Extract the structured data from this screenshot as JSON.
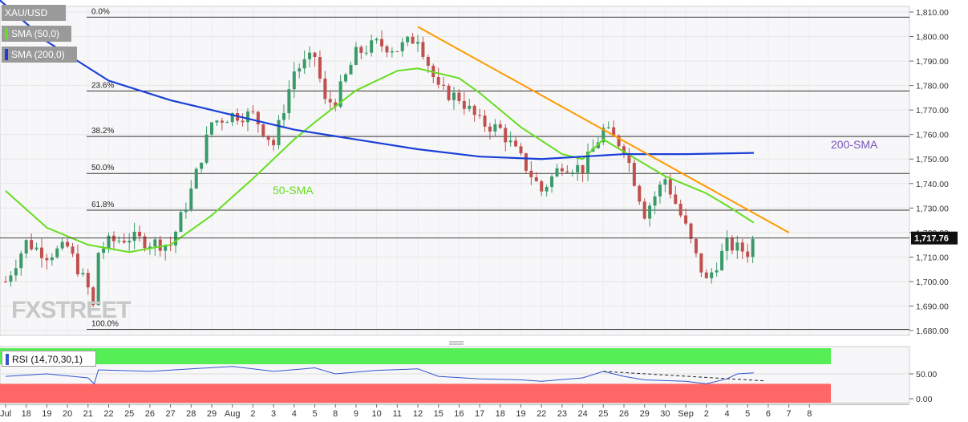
{
  "legend": {
    "symbol": "XAU/USD",
    "sma50": "SMA (50,0)",
    "sma200": "SMA (200,0)",
    "rsi": "RSI (14,70,30,1)"
  },
  "watermark": "FXSTREET",
  "colors": {
    "bull": "#3a9a6a",
    "bear": "#c0504d",
    "sma50": "#66dd22",
    "sma200": "#1a3fd6",
    "trendline": "#ff9900",
    "rsi_line": "#3355cc",
    "rsi_overbought": "#55ee55",
    "rsi_oversold": "#ff6666",
    "price_tag_bg": "#111111"
  },
  "chart_data": {
    "type": "candlestick",
    "symbol": "XAU/USD",
    "current_price": 1717.76,
    "current_price_label": "1,717.76",
    "y_ticks": [
      "1,680.00",
      "1,690.00",
      "1,700.00",
      "1,710.00",
      "1,720.00",
      "1,730.00",
      "1,740.00",
      "1,750.00",
      "1,760.00",
      "1,770.00",
      "1,780.00",
      "1,790.00",
      "1,800.00",
      "1,810.00"
    ],
    "x_ticks": [
      "Jul",
      "18",
      "19",
      "20",
      "21",
      "22",
      "25",
      "26",
      "27",
      "28",
      "29",
      "Aug",
      "2",
      "3",
      "4",
      "5",
      "8",
      "9",
      "10",
      "11",
      "12",
      "15",
      "16",
      "17",
      "18",
      "19",
      "22",
      "23",
      "24",
      "25",
      "26",
      "29",
      "30",
      "Sep",
      "2",
      "4",
      "5",
      "6",
      "7",
      "8"
    ],
    "fibonacci": [
      {
        "label": "0.0%",
        "price": 1807.9
      },
      {
        "label": "23.6%",
        "price": 1777.8
      },
      {
        "label": "38.2%",
        "price": 1759.2
      },
      {
        "label": "50.0%",
        "price": 1744.1
      },
      {
        "label": "61.8%",
        "price": 1729.1
      },
      {
        "label": "100.0%",
        "price": 1680.5
      }
    ],
    "annotations": {
      "sma50_label": "50-SMA",
      "sma200_label": "200-SMA"
    },
    "trendline": {
      "from": {
        "x": "Aug 12",
        "y": 1804
      },
      "to": {
        "x": "Sep 7",
        "y": 1720
      }
    },
    "rsi": {
      "period": 14,
      "overbought": 70,
      "oversold": 30,
      "ticks": [
        "0.00",
        "50.00"
      ]
    }
  }
}
